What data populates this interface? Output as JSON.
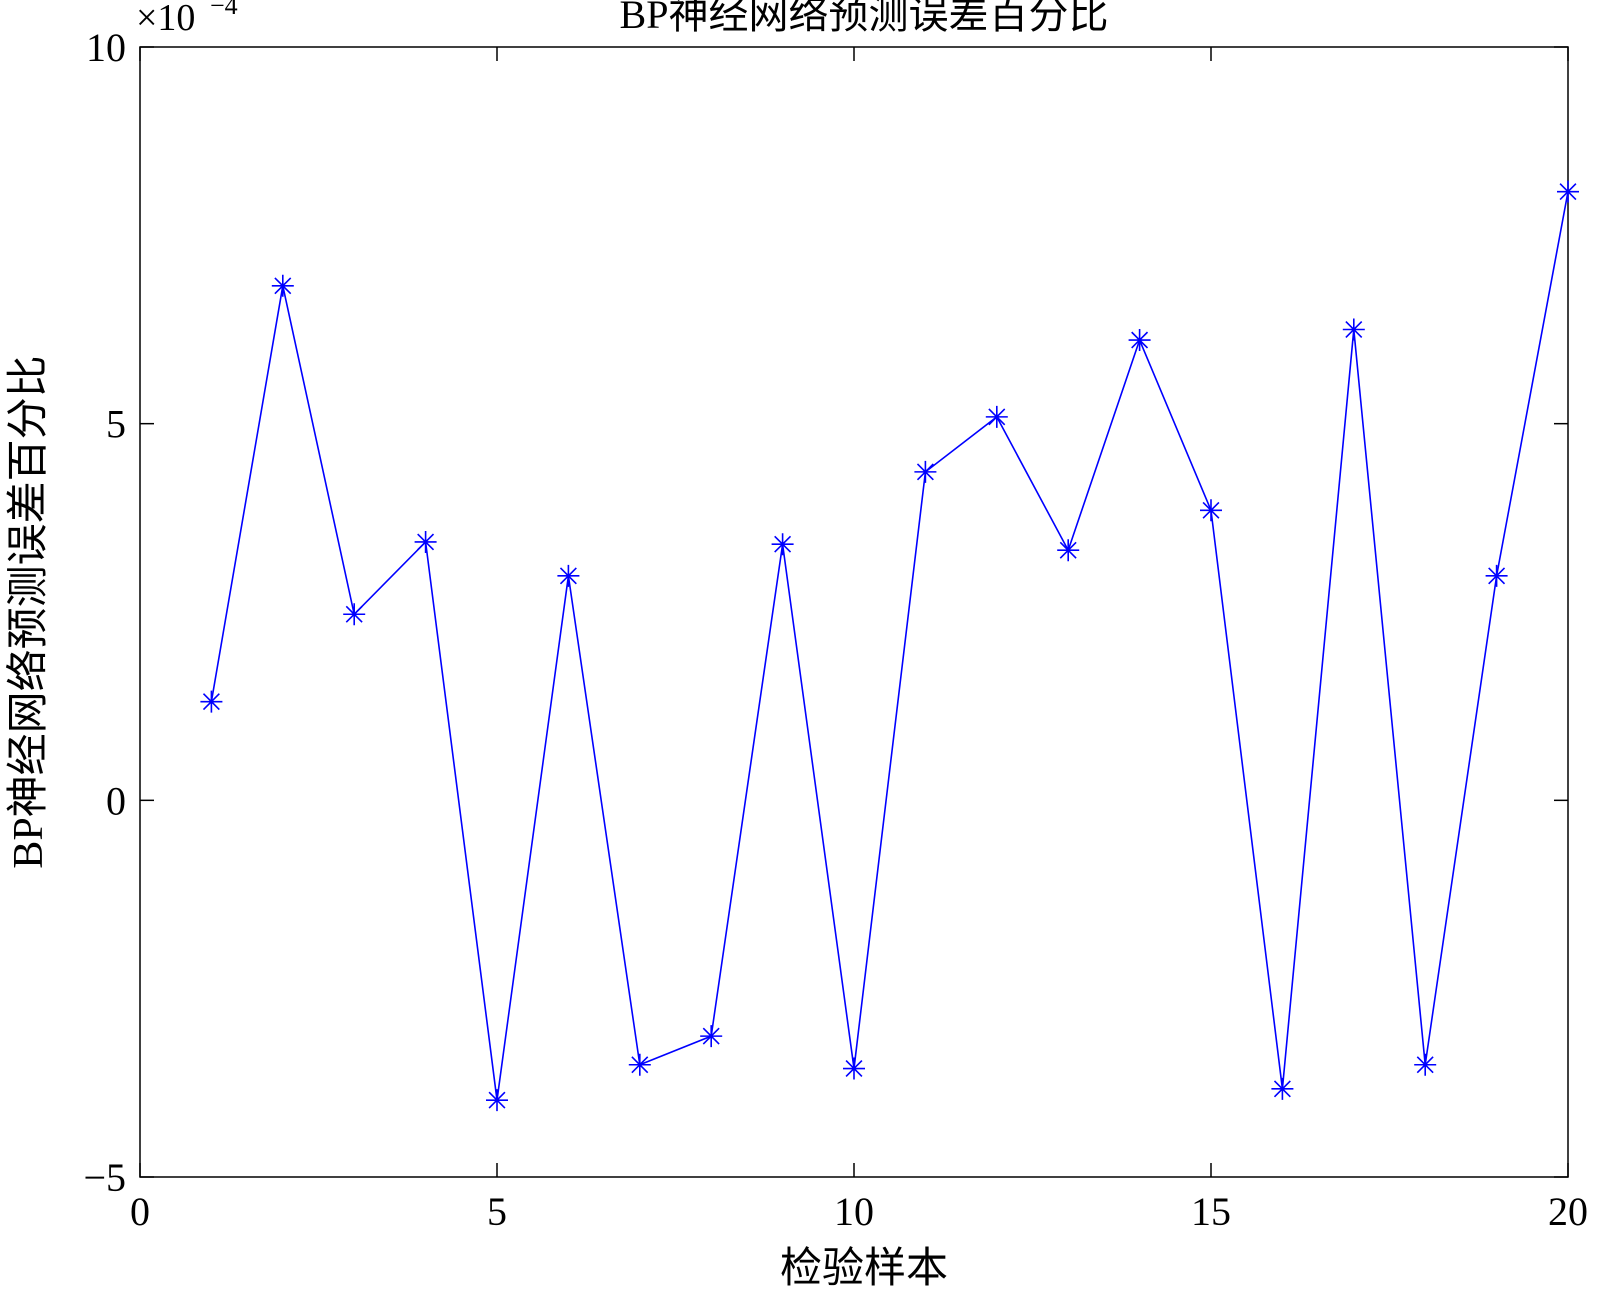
{
  "chart_data": {
    "type": "line",
    "title": "BP神经网络预测误差百分比",
    "x_label": "检验样本",
    "y_label": "BP神经网络预测误差百分比",
    "y_scale_label": "×10",
    "y_scale_exponent": "−4",
    "x": [
      1,
      2,
      3,
      4,
      5,
      6,
      7,
      8,
      9,
      10,
      11,
      12,
      13,
      14,
      15,
      16,
      17,
      18,
      19,
      20
    ],
    "series": [
      {
        "color": "#0000ff",
        "marker": "asterisk",
        "values": [
          1.31,
          6.83,
          2.47,
          3.43,
          -3.98,
          2.98,
          -3.51,
          -3.13,
          3.4,
          -3.56,
          4.36,
          5.09,
          3.32,
          6.11,
          3.85,
          -3.83,
          6.25,
          -3.51,
          2.98,
          8.08
        ]
      }
    ],
    "xlim": [
      0,
      20
    ],
    "xticks": [
      0,
      5,
      10,
      15,
      20
    ],
    "ylim": [
      -5,
      10
    ],
    "yticks": [
      {
        "value": -5,
        "label": "−5"
      },
      0,
      5,
      10
    ],
    "grid": false
  }
}
